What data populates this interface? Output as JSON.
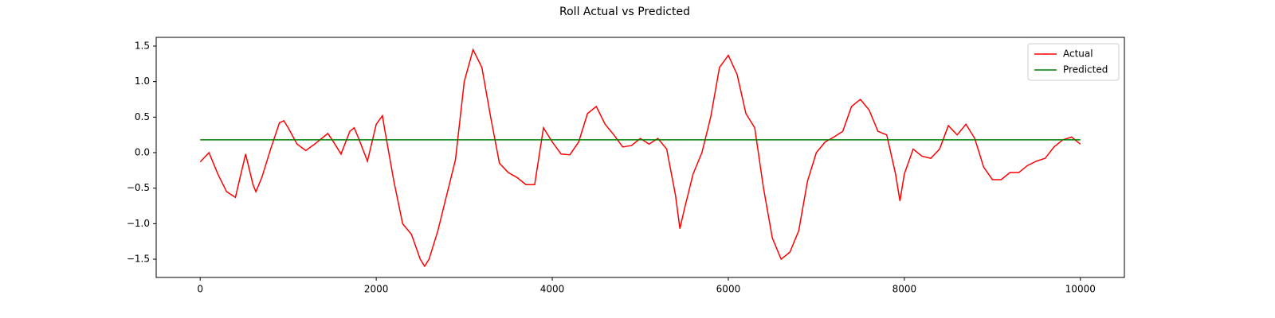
{
  "chart_data": {
    "type": "line",
    "title": "Roll Actual vs Predicted",
    "xlim": [
      -500,
      10500
    ],
    "xticks": [
      0,
      2000,
      4000,
      6000,
      8000,
      10000
    ],
    "ylim": [
      -1.757,
      1.623
    ],
    "yticks": [
      {
        "value": -1.5,
        "label": "−1.5"
      },
      {
        "value": -1.0,
        "label": "−1.0"
      },
      {
        "value": -0.5,
        "label": "−0.5"
      },
      {
        "value": 0.0,
        "label": "0.0"
      },
      {
        "value": 0.5,
        "label": "0.5"
      },
      {
        "value": 1.0,
        "label": "1.0"
      },
      {
        "value": 1.5,
        "label": "1.5"
      }
    ],
    "grid": false,
    "legend": "upper right",
    "series": [
      {
        "name": "Actual",
        "color": "#ff0000",
        "x": [
          0,
          100,
          200,
          300,
          400,
          516,
          600,
          633,
          700,
          800,
          900,
          950,
          1000,
          1100,
          1200,
          1300,
          1400,
          1450,
          1500,
          1600,
          1700,
          1750,
          1800,
          1900,
          2000,
          2070,
          2100,
          2200,
          2300,
          2400,
          2500,
          2550,
          2600,
          2700,
          2800,
          2900,
          3000,
          3100,
          3200,
          3300,
          3400,
          3500,
          3600,
          3700,
          3800,
          3900,
          4000,
          4100,
          4200,
          4300,
          4400,
          4500,
          4600,
          4700,
          4800,
          4900,
          5000,
          5100,
          5200,
          5300,
          5400,
          5450,
          5500,
          5600,
          5700,
          5800,
          5900,
          6000,
          6100,
          6200,
          6300,
          6400,
          6500,
          6600,
          6700,
          6800,
          6900,
          7000,
          7100,
          7200,
          7300,
          7400,
          7500,
          7600,
          7700,
          7800,
          7900,
          7950,
          8000,
          8100,
          8200,
          8300,
          8400,
          8500,
          8600,
          8700,
          8800,
          8900,
          9000,
          9100,
          9200,
          9300,
          9400,
          9500,
          9600,
          9700,
          9800,
          9900,
          10000
        ],
        "values": [
          -0.13,
          0.0,
          -0.3,
          -0.55,
          -0.63,
          -0.02,
          -0.45,
          -0.55,
          -0.35,
          0.05,
          0.42,
          0.45,
          0.35,
          0.12,
          0.03,
          0.12,
          0.22,
          0.27,
          0.18,
          -0.02,
          0.3,
          0.35,
          0.2,
          -0.12,
          0.4,
          0.52,
          0.3,
          -0.4,
          -1.0,
          -1.15,
          -1.5,
          -1.6,
          -1.5,
          -1.1,
          -0.6,
          -0.1,
          1.0,
          1.45,
          1.2,
          0.5,
          -0.15,
          -0.28,
          -0.35,
          -0.45,
          -0.45,
          0.35,
          0.15,
          -0.02,
          -0.03,
          0.15,
          0.55,
          0.65,
          0.4,
          0.25,
          0.08,
          0.1,
          0.2,
          0.12,
          0.2,
          0.05,
          -0.6,
          -1.07,
          -0.8,
          -0.3,
          0.0,
          0.5,
          1.2,
          1.37,
          1.1,
          0.55,
          0.35,
          -0.5,
          -1.2,
          -1.5,
          -1.4,
          -1.1,
          -0.4,
          0.0,
          0.15,
          0.22,
          0.3,
          0.65,
          0.75,
          0.6,
          0.3,
          0.25,
          -0.3,
          -0.68,
          -0.3,
          0.05,
          -0.05,
          -0.08,
          0.05,
          0.38,
          0.25,
          0.4,
          0.2,
          -0.2,
          -0.38,
          -0.38,
          -0.28,
          -0.28,
          -0.18,
          -0.12,
          -0.08,
          0.08,
          0.18,
          0.22,
          0.12
        ]
      },
      {
        "name": "Predicted",
        "color": "#008000",
        "x": [
          0,
          10000
        ],
        "values": [
          0.18,
          0.18
        ]
      }
    ]
  }
}
